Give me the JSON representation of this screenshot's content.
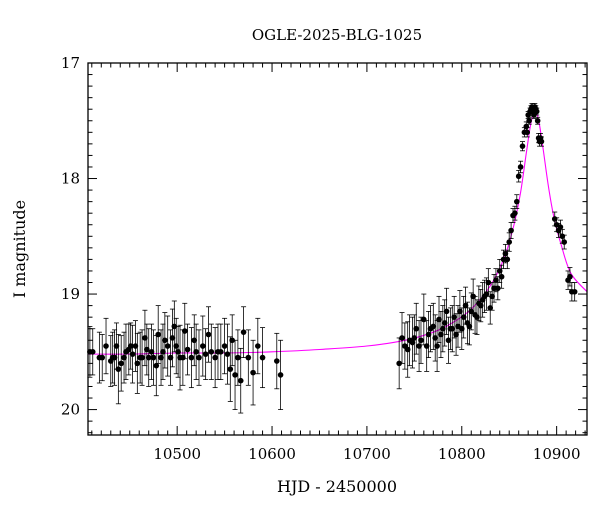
{
  "chart_data": {
    "type": "scatter",
    "title": "OGLE-2025-BLG-1025",
    "xlabel": "HJD - 2450000",
    "ylabel": "I magnitude",
    "xlim": [
      10406,
      10932
    ],
    "ylim": [
      17.0,
      20.22
    ],
    "y_inverted": true,
    "grid": false,
    "x_ticks": [
      10500,
      10600,
      10700,
      10800,
      10900
    ],
    "y_ticks": [
      17,
      18,
      19,
      20
    ],
    "colors": {
      "points": "#000000",
      "model": "#ff00ff"
    },
    "model": {
      "name": "",
      "x": [
        10406,
        10450,
        10500,
        10550,
        10600,
        10650,
        10700,
        10740,
        10770,
        10790,
        10810,
        10830,
        10845,
        10855,
        10862,
        10868,
        10872,
        10875,
        10877,
        10879,
        10882,
        10886,
        10891,
        10897,
        10905,
        10915,
        10932
      ],
      "y": [
        19.52,
        19.52,
        19.51,
        19.51,
        19.5,
        19.48,
        19.45,
        19.4,
        19.33,
        19.25,
        19.13,
        18.93,
        18.68,
        18.4,
        18.12,
        17.78,
        17.56,
        17.45,
        17.42,
        17.43,
        17.54,
        17.76,
        18.05,
        18.33,
        18.58,
        18.82,
        18.98
      ]
    },
    "series": [
      {
        "name": "",
        "x": [
          10408,
          10411,
          10418,
          10421,
          10425,
          10430,
          10432,
          10434,
          10436,
          10438,
          10441,
          10444,
          10446,
          10449,
          10451,
          10453,
          10456,
          10458,
          10461,
          10463,
          10466,
          10468,
          10470,
          10473,
          10475,
          10478,
          10480,
          10483,
          10485,
          10487,
          10490,
          10493,
          10495,
          10497,
          10499,
          10501,
          10503,
          10506,
          10508,
          10511,
          10515,
          10518,
          10520,
          10523,
          10527,
          10530,
          10533,
          10536,
          10540,
          10543,
          10546,
          10550,
          10553,
          10556,
          10558,
          10561,
          10564,
          10567,
          10570,
          10575,
          10580,
          10585,
          10590,
          10605,
          10609,
          10734,
          10737,
          10740,
          10743,
          10745,
          10748,
          10750,
          10752,
          10755,
          10757,
          10760,
          10763,
          10765,
          10767,
          10770,
          10772,
          10774,
          10776,
          10778,
          10780,
          10782,
          10784,
          10786,
          10788,
          10790,
          10792,
          10794,
          10796,
          10798,
          10800,
          10802,
          10804,
          10806,
          10808,
          10810,
          10812,
          10814,
          10816,
          10818,
          10820,
          10822,
          10824,
          10826,
          10828,
          10830,
          10832,
          10834,
          10836,
          10838,
          10840,
          10842,
          10844,
          10846,
          10848,
          10850,
          10852,
          10854,
          10856,
          10858,
          10860,
          10862,
          10864,
          10866,
          10868,
          10869,
          10870,
          10871,
          10872,
          10873,
          10874,
          10875,
          10876,
          10877,
          10878,
          10879,
          10880,
          10881,
          10882,
          10883,
          10884,
          10898,
          10900,
          10902,
          10904,
          10906,
          10908,
          10912,
          10914,
          10916,
          10919
        ],
        "y": [
          19.5,
          19.5,
          19.55,
          19.55,
          19.45,
          19.58,
          19.55,
          19.55,
          19.45,
          19.65,
          19.6,
          19.55,
          19.5,
          19.48,
          19.45,
          19.52,
          19.45,
          19.6,
          19.55,
          19.55,
          19.38,
          19.48,
          19.55,
          19.5,
          19.55,
          19.62,
          19.35,
          19.55,
          19.5,
          19.4,
          19.45,
          19.55,
          19.38,
          19.28,
          19.45,
          19.5,
          19.55,
          19.55,
          19.32,
          19.48,
          19.55,
          19.4,
          19.5,
          19.55,
          19.45,
          19.52,
          19.35,
          19.5,
          19.55,
          19.5,
          19.5,
          19.45,
          19.52,
          19.65,
          19.4,
          19.7,
          19.55,
          19.75,
          19.33,
          19.55,
          19.68,
          19.45,
          19.55,
          19.58,
          19.7,
          19.6,
          19.38,
          19.45,
          19.48,
          19.4,
          19.42,
          19.38,
          19.3,
          19.45,
          19.4,
          19.22,
          19.45,
          19.35,
          19.3,
          19.28,
          19.38,
          19.45,
          19.22,
          19.35,
          19.3,
          19.25,
          19.15,
          19.4,
          19.3,
          19.3,
          19.2,
          19.35,
          19.28,
          19.15,
          19.3,
          19.2,
          19.1,
          19.25,
          19.28,
          19.15,
          19.02,
          19.18,
          19.2,
          19.08,
          19.1,
          19.05,
          19.02,
          19.0,
          18.9,
          19.12,
          19.02,
          18.95,
          18.88,
          18.95,
          18.8,
          18.85,
          18.7,
          18.65,
          18.7,
          18.55,
          18.45,
          18.32,
          18.3,
          18.2,
          17.98,
          17.9,
          17.72,
          17.6,
          17.55,
          17.6,
          17.45,
          17.5,
          17.42,
          17.4,
          17.38,
          17.42,
          17.45,
          17.38,
          17.4,
          17.42,
          17.5,
          17.65,
          17.68,
          17.65,
          17.68,
          18.35,
          18.4,
          18.45,
          18.42,
          18.5,
          18.55,
          18.88,
          18.85,
          18.98,
          18.98
        ],
        "err": [
          0.22,
          0.2,
          0.22,
          0.2,
          0.24,
          0.22,
          0.22,
          0.24,
          0.2,
          0.3,
          0.24,
          0.22,
          0.24,
          0.22,
          0.2,
          0.25,
          0.22,
          0.26,
          0.22,
          0.24,
          0.24,
          0.22,
          0.25,
          0.24,
          0.24,
          0.26,
          0.25,
          0.24,
          0.24,
          0.24,
          0.26,
          0.24,
          0.25,
          0.22,
          0.24,
          0.22,
          0.28,
          0.24,
          0.24,
          0.22,
          0.26,
          0.22,
          0.24,
          0.24,
          0.26,
          0.22,
          0.24,
          0.24,
          0.26,
          0.24,
          0.24,
          0.24,
          0.26,
          0.28,
          0.22,
          0.3,
          0.24,
          0.28,
          0.22,
          0.24,
          0.28,
          0.24,
          0.26,
          0.24,
          0.3,
          0.22,
          0.22,
          0.2,
          0.24,
          0.22,
          0.22,
          0.2,
          0.22,
          0.22,
          0.2,
          0.22,
          0.22,
          0.2,
          0.2,
          0.2,
          0.2,
          0.22,
          0.2,
          0.2,
          0.2,
          0.2,
          0.2,
          0.2,
          0.18,
          0.2,
          0.18,
          0.18,
          0.18,
          0.18,
          0.18,
          0.18,
          0.16,
          0.18,
          0.16,
          0.16,
          0.15,
          0.16,
          0.15,
          0.15,
          0.14,
          0.15,
          0.14,
          0.14,
          0.12,
          0.14,
          0.12,
          0.12,
          0.1,
          0.1,
          0.1,
          0.1,
          0.08,
          0.08,
          0.08,
          0.08,
          0.07,
          0.06,
          0.06,
          0.06,
          0.05,
          0.05,
          0.04,
          0.04,
          0.04,
          0.04,
          0.03,
          0.03,
          0.03,
          0.03,
          0.03,
          0.03,
          0.03,
          0.03,
          0.03,
          0.03,
          0.03,
          0.04,
          0.04,
          0.04,
          0.04,
          0.06,
          0.06,
          0.06,
          0.06,
          0.06,
          0.06,
          0.08,
          0.08,
          0.08,
          0.08
        ]
      }
    ]
  }
}
